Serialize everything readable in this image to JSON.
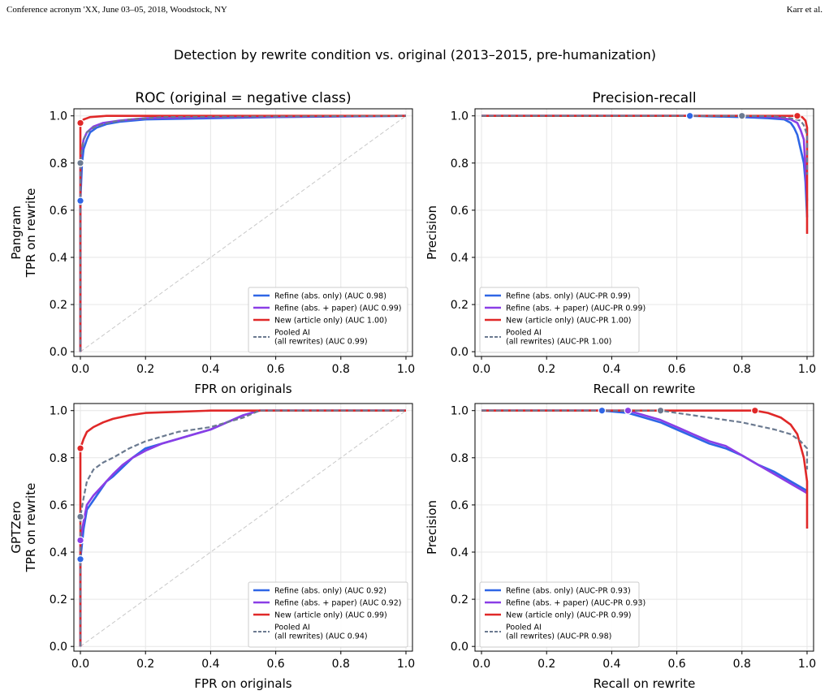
{
  "header": {
    "left": "Conference acronym 'XX, June 03–05, 2018, Woodstock, NY",
    "right": "Karr et al."
  },
  "figure": {
    "suptitle": "Detection by rewrite condition vs. original (2013–2015, pre-humanization)"
  },
  "colors": {
    "refine_abs": "#2f66e6",
    "refine_paper": "#8a3ee6",
    "new_article": "#e02828",
    "pooled": "#6b7a90",
    "chance": "#c8c8c8"
  },
  "chart_data": [
    {
      "id": "pangram-roc",
      "type": "line",
      "title": "ROC (original = negative class)",
      "xlabel": "FPR on originals",
      "ylabel": "Pangram\nTPR on rewrite",
      "xlim": [
        -0.02,
        1.02
      ],
      "ylim": [
        -0.02,
        1.03
      ],
      "xticks": [
        "0.0",
        "0.2",
        "0.4",
        "0.6",
        "0.8",
        "1.0"
      ],
      "yticks": [
        "0.0",
        "0.2",
        "0.4",
        "0.6",
        "0.8",
        "1.0"
      ],
      "grid": true,
      "legend": "bottom-right",
      "diagonal": true,
      "series": [
        {
          "name": "Refine (abs. only) (AUC 0.98)",
          "color": "#2f66e6",
          "dash": false,
          "x": [
            0,
            0,
            0.005,
            0.01,
            0.02,
            0.03,
            0.05,
            0.08,
            0.12,
            0.2,
            0.4,
            0.6,
            1.0
          ],
          "y": [
            0,
            0.64,
            0.8,
            0.86,
            0.9,
            0.93,
            0.95,
            0.965,
            0.975,
            0.985,
            0.99,
            0.995,
            1.0
          ],
          "marker": [
            0,
            0.64
          ]
        },
        {
          "name": "Refine (abs. + paper) (AUC 0.99)",
          "color": "#8a3ee6",
          "dash": false,
          "x": [
            0,
            0,
            0.005,
            0.01,
            0.02,
            0.04,
            0.07,
            0.12,
            0.2,
            0.4,
            1.0
          ],
          "y": [
            0,
            0.8,
            0.86,
            0.9,
            0.93,
            0.955,
            0.97,
            0.98,
            0.99,
            0.995,
            1.0
          ],
          "marker": [
            0,
            0.8
          ]
        },
        {
          "name": "New (article only) (AUC 1.00)",
          "color": "#e02828",
          "dash": false,
          "x": [
            0,
            0,
            0.01,
            0.03,
            0.08,
            1.0
          ],
          "y": [
            0,
            0.97,
            0.985,
            0.995,
            1.0,
            1.0
          ],
          "marker": [
            0,
            0.97
          ]
        },
        {
          "name": "Pooled AI\n(all rewrites) (AUC 0.99)",
          "color": "#6b7a90",
          "dash": true,
          "x": [
            0,
            0,
            0.005,
            0.01,
            0.02,
            0.04,
            0.07,
            0.1,
            0.15,
            0.25,
            1.0
          ],
          "y": [
            0,
            0.8,
            0.86,
            0.9,
            0.93,
            0.95,
            0.965,
            0.975,
            0.985,
            0.995,
            1.0
          ],
          "marker": [
            0,
            0.8
          ]
        }
      ]
    },
    {
      "id": "pangram-pr",
      "type": "line",
      "title": "Precision-recall",
      "xlabel": "Recall on rewrite",
      "ylabel": "Precision",
      "xlim": [
        -0.02,
        1.02
      ],
      "ylim": [
        -0.02,
        1.03
      ],
      "xticks": [
        "0.0",
        "0.2",
        "0.4",
        "0.6",
        "0.8",
        "1.0"
      ],
      "yticks": [
        "0.0",
        "0.2",
        "0.4",
        "0.6",
        "0.8",
        "1.0"
      ],
      "grid": true,
      "legend": "bottom-left",
      "diagonal": false,
      "series": [
        {
          "name": "Refine (abs. only) (AUC-PR 0.99)",
          "color": "#2f66e6",
          "dash": false,
          "x": [
            0,
            0.64,
            0.8,
            0.88,
            0.93,
            0.95,
            0.96,
            0.97,
            0.98,
            0.99,
            0.995,
            1.0
          ],
          "y": [
            1.0,
            1.0,
            0.995,
            0.99,
            0.985,
            0.97,
            0.95,
            0.92,
            0.86,
            0.8,
            0.72,
            0.57
          ],
          "marker": [
            0.64,
            1.0
          ]
        },
        {
          "name": "Refine (abs. + paper) (AUC-PR 0.99)",
          "color": "#8a3ee6",
          "dash": false,
          "x": [
            0,
            0.8,
            0.9,
            0.95,
            0.97,
            0.98,
            0.99,
            1.0
          ],
          "y": [
            1.0,
            1.0,
            0.995,
            0.985,
            0.97,
            0.94,
            0.9,
            0.64
          ],
          "marker": [
            0.8,
            1.0
          ]
        },
        {
          "name": "New (article only) (AUC-PR 1.00)",
          "color": "#e02828",
          "dash": false,
          "x": [
            0,
            0.97,
            0.985,
            0.995,
            1.0,
            1.0
          ],
          "y": [
            1.0,
            1.0,
            0.995,
            0.98,
            0.95,
            0.5
          ],
          "marker": [
            0.97,
            1.0
          ]
        },
        {
          "name": "Pooled AI\n(all rewrites) (AUC-PR 1.00)",
          "color": "#6b7a90",
          "dash": true,
          "x": [
            0,
            0.8,
            0.9,
            0.95,
            0.98,
            0.99,
            1.0,
            1.0
          ],
          "y": [
            1.0,
            1.0,
            0.998,
            0.99,
            0.98,
            0.96,
            0.92,
            0.75
          ],
          "marker": [
            0.8,
            1.0
          ]
        }
      ]
    },
    {
      "id": "gptzero-roc",
      "type": "line",
      "title": "",
      "xlabel": "FPR on originals",
      "ylabel": "GPTZero\nTPR on rewrite",
      "xlim": [
        -0.02,
        1.02
      ],
      "ylim": [
        -0.02,
        1.03
      ],
      "xticks": [
        "0.0",
        "0.2",
        "0.4",
        "0.6",
        "0.8",
        "1.0"
      ],
      "yticks": [
        "0.0",
        "0.2",
        "0.4",
        "0.6",
        "0.8",
        "1.0"
      ],
      "grid": true,
      "legend": "bottom-right",
      "diagonal": true,
      "series": [
        {
          "name": "Refine (abs. only) (AUC 0.92)",
          "color": "#2f66e6",
          "dash": false,
          "x": [
            0,
            0,
            0.01,
            0.02,
            0.04,
            0.06,
            0.08,
            0.1,
            0.13,
            0.16,
            0.2,
            0.25,
            0.3,
            0.35,
            0.4,
            0.45,
            0.5,
            0.55,
            1.0
          ],
          "y": [
            0,
            0.37,
            0.5,
            0.58,
            0.62,
            0.66,
            0.7,
            0.72,
            0.76,
            0.8,
            0.84,
            0.86,
            0.88,
            0.9,
            0.92,
            0.95,
            0.98,
            1.0,
            1.0
          ],
          "marker": [
            0,
            0.37
          ]
        },
        {
          "name": "Refine (abs. + paper) (AUC 0.92)",
          "color": "#8a3ee6",
          "dash": false,
          "x": [
            0,
            0,
            0.01,
            0.02,
            0.04,
            0.06,
            0.08,
            0.1,
            0.13,
            0.16,
            0.2,
            0.25,
            0.3,
            0.35,
            0.4,
            0.45,
            0.5,
            0.55,
            1.0
          ],
          "y": [
            0,
            0.45,
            0.53,
            0.6,
            0.64,
            0.67,
            0.7,
            0.73,
            0.77,
            0.8,
            0.83,
            0.86,
            0.88,
            0.9,
            0.92,
            0.95,
            0.98,
            1.0,
            1.0
          ],
          "marker": [
            0,
            0.45
          ]
        },
        {
          "name": "New (article only) (AUC 0.99)",
          "color": "#e02828",
          "dash": false,
          "x": [
            0,
            0,
            0.01,
            0.02,
            0.04,
            0.07,
            0.1,
            0.15,
            0.2,
            0.3,
            0.4,
            1.0
          ],
          "y": [
            0,
            0.84,
            0.88,
            0.91,
            0.93,
            0.95,
            0.965,
            0.98,
            0.99,
            0.995,
            1.0,
            1.0
          ],
          "marker": [
            0,
            0.84
          ]
        },
        {
          "name": "Pooled AI\n(all rewrites) (AUC 0.94)",
          "color": "#6b7a90",
          "dash": true,
          "x": [
            0,
            0,
            0.01,
            0.02,
            0.04,
            0.07,
            0.1,
            0.15,
            0.2,
            0.25,
            0.3,
            0.4,
            0.5,
            0.55,
            1.0
          ],
          "y": [
            0,
            0.55,
            0.63,
            0.7,
            0.75,
            0.78,
            0.8,
            0.84,
            0.87,
            0.89,
            0.91,
            0.93,
            0.97,
            1.0,
            1.0
          ],
          "marker": [
            0,
            0.55
          ]
        }
      ]
    },
    {
      "id": "gptzero-pr",
      "type": "line",
      "title": "",
      "xlabel": "Recall on rewrite",
      "ylabel": "Precision",
      "xlim": [
        -0.02,
        1.02
      ],
      "ylim": [
        -0.02,
        1.03
      ],
      "xticks": [
        "0.0",
        "0.2",
        "0.4",
        "0.6",
        "0.8",
        "1.0"
      ],
      "yticks": [
        "0.0",
        "0.2",
        "0.4",
        "0.6",
        "0.8",
        "1.0"
      ],
      "grid": true,
      "legend": "bottom-left",
      "diagonal": false,
      "series": [
        {
          "name": "Refine (abs. only) (AUC-PR 0.93)",
          "color": "#2f66e6",
          "dash": false,
          "x": [
            0,
            0.37,
            0.45,
            0.5,
            0.55,
            0.6,
            0.65,
            0.7,
            0.75,
            0.8,
            0.85,
            0.9,
            0.95,
            1.0
          ],
          "y": [
            1.0,
            1.0,
            0.99,
            0.97,
            0.95,
            0.92,
            0.89,
            0.86,
            0.84,
            0.81,
            0.77,
            0.74,
            0.7,
            0.66
          ],
          "marker": [
            0.37,
            1.0
          ]
        },
        {
          "name": "Refine (abs. + paper) (AUC-PR 0.93)",
          "color": "#8a3ee6",
          "dash": false,
          "x": [
            0,
            0.45,
            0.5,
            0.55,
            0.6,
            0.65,
            0.7,
            0.75,
            0.8,
            0.85,
            0.9,
            0.95,
            1.0
          ],
          "y": [
            1.0,
            1.0,
            0.98,
            0.96,
            0.93,
            0.9,
            0.87,
            0.85,
            0.81,
            0.77,
            0.73,
            0.69,
            0.65
          ],
          "marker": [
            0.45,
            1.0
          ]
        },
        {
          "name": "New (article only) (AUC-PR 0.99)",
          "color": "#e02828",
          "dash": false,
          "x": [
            0,
            0.84,
            0.88,
            0.92,
            0.95,
            0.97,
            0.99,
            1.0,
            1.0
          ],
          "y": [
            1.0,
            1.0,
            0.99,
            0.97,
            0.94,
            0.9,
            0.8,
            0.7,
            0.5
          ],
          "marker": [
            0.84,
            1.0
          ]
        },
        {
          "name": "Pooled AI\n(all rewrites) (AUC-PR 0.98)",
          "color": "#6b7a90",
          "dash": true,
          "x": [
            0,
            0.55,
            0.6,
            0.7,
            0.8,
            0.9,
            0.95,
            0.98,
            1.0,
            1.0
          ],
          "y": [
            1.0,
            1.0,
            0.99,
            0.97,
            0.95,
            0.92,
            0.9,
            0.87,
            0.84,
            0.75
          ],
          "marker": [
            0.55,
            1.0
          ]
        }
      ]
    }
  ]
}
